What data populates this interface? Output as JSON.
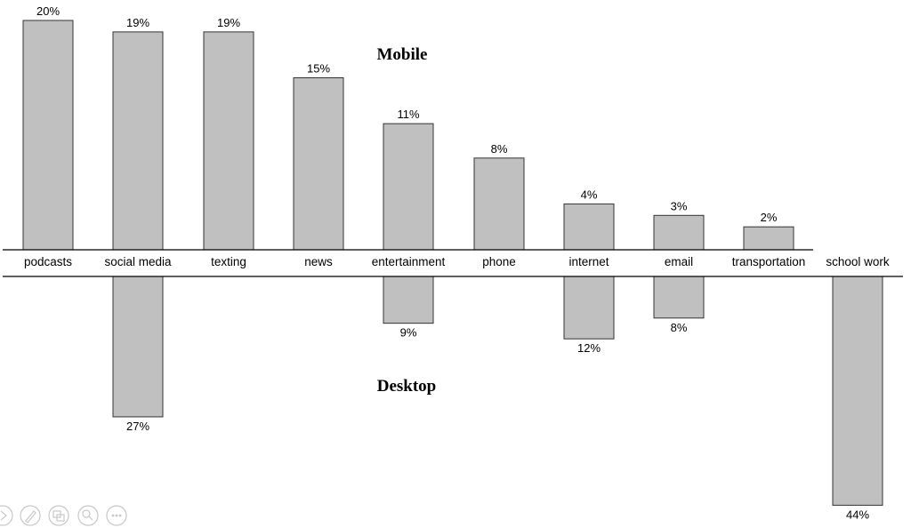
{
  "chart_data": [
    {
      "type": "bar",
      "title": "Mobile",
      "categories": [
        "podcasts",
        "social media",
        "texting",
        "news",
        "entertainment",
        "phone",
        "internet",
        "email",
        "transportation"
      ],
      "values": [
        20,
        19,
        19,
        15,
        11,
        8,
        4,
        3,
        2
      ],
      "value_labels": [
        "20%",
        "19%",
        "19%",
        "15%",
        "11%",
        "8%",
        "4%",
        "3%",
        "2%"
      ],
      "bar_color": "#c0c0c0",
      "bar_outline": "#333333"
    },
    {
      "type": "bar",
      "title": "Desktop",
      "categories": [
        "social media",
        "entertainment",
        "internet",
        "email",
        "school work"
      ],
      "values": [
        27,
        9,
        12,
        8,
        44
      ],
      "value_labels": [
        "27%",
        "9%",
        "12%",
        "8%",
        "44%"
      ],
      "orientation": "downward",
      "bar_color": "#c0c0c0",
      "bar_outline": "#333333"
    }
  ],
  "extra_category": "school work",
  "viewer_controls": [
    {
      "icon": "play-icon"
    },
    {
      "icon": "pen-icon"
    },
    {
      "icon": "slides-icon"
    },
    {
      "icon": "zoom-icon"
    },
    {
      "icon": "more-icon"
    }
  ]
}
